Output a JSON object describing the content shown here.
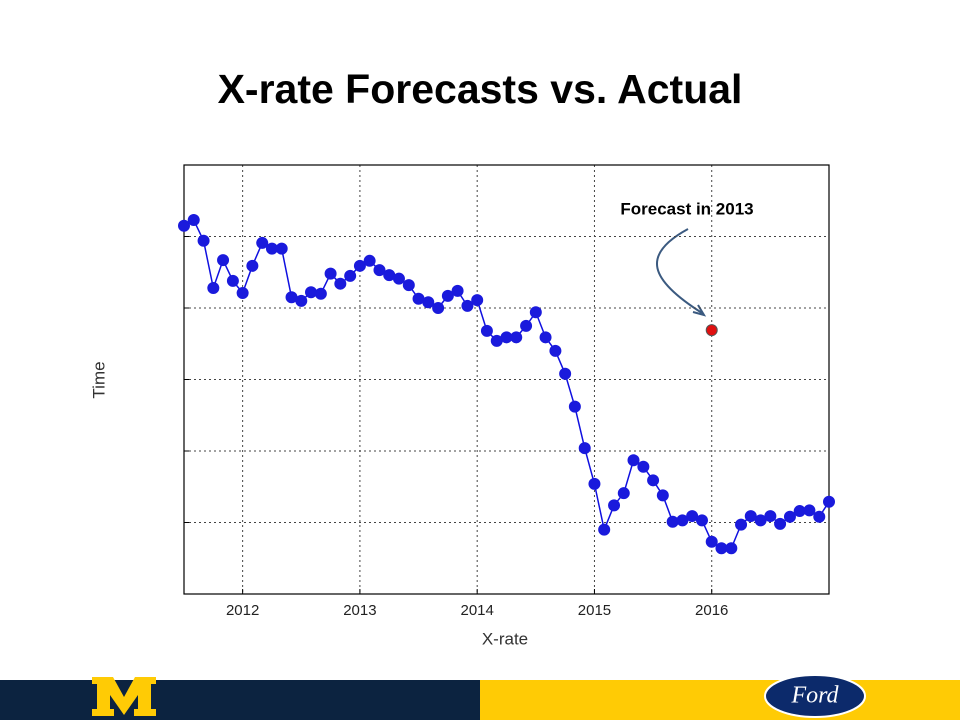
{
  "chart_data": {
    "type": "line",
    "title": "X-rate Forecasts vs. Actual",
    "xlabel": "X-rate",
    "ylabel": "Time",
    "annotation": "Forecast in 2013",
    "xlim": [
      2011.5,
      2017.0
    ],
    "xticks": [
      2012,
      2013,
      2014,
      2015,
      2016
    ],
    "ylim": [
      0,
      6
    ],
    "yticks": [
      1,
      2,
      3,
      4,
      5
    ],
    "grid": true,
    "series": [
      {
        "color": "#1010e0",
        "marker_color": "#1a1adc",
        "x": [
          2011.5,
          2011.583,
          2011.667,
          2011.75,
          2011.833,
          2011.917,
          2012,
          2012.083,
          2012.167,
          2012.25,
          2012.333,
          2012.417,
          2012.5,
          2012.583,
          2012.667,
          2012.75,
          2012.833,
          2012.917,
          2013,
          2013.083,
          2013.167,
          2013.25,
          2013.333,
          2013.417,
          2013.5,
          2013.583,
          2013.667,
          2013.75,
          2013.833,
          2013.917,
          2014,
          2014.083,
          2014.167,
          2014.25,
          2014.333,
          2014.417,
          2014.5,
          2014.583,
          2014.667,
          2014.75,
          2014.833,
          2014.917,
          2015,
          2015.083,
          2015.167,
          2015.25,
          2015.333,
          2015.417,
          2015.5,
          2015.583,
          2015.667,
          2015.75,
          2015.833,
          2015.917,
          2016,
          2016.083,
          2016.167,
          2016.25,
          2016.333,
          2016.417,
          2016.5,
          2016.583,
          2016.667,
          2016.75,
          2016.833,
          2016.917,
          2017.0
        ],
        "values": [
          5.15,
          5.23,
          4.94,
          4.28,
          4.67,
          4.38,
          4.21,
          4.59,
          4.91,
          4.83,
          4.83,
          4.15,
          4.1,
          4.22,
          4.2,
          4.48,
          4.34,
          4.45,
          4.59,
          4.66,
          4.53,
          4.46,
          4.41,
          4.32,
          4.13,
          4.08,
          4.0,
          4.17,
          4.24,
          4.03,
          4.11,
          3.68,
          3.54,
          3.59,
          3.59,
          3.75,
          3.94,
          3.59,
          3.4,
          3.08,
          2.62,
          2.04,
          1.54,
          0.9,
          1.24,
          1.41,
          1.87,
          1.78,
          1.59,
          1.38,
          1.01,
          1.03,
          1.09,
          1.03,
          0.73,
          0.64,
          0.64,
          0.97,
          1.09,
          1.03,
          1.09,
          0.98,
          1.08,
          1.16,
          1.17,
          1.08,
          1.29
        ]
      },
      {
        "color": "#e01010",
        "marker_color": "#e01010",
        "x": [
          2016.0
        ],
        "values": [
          3.69
        ]
      }
    ]
  },
  "logos": {
    "ford": "Ford"
  }
}
